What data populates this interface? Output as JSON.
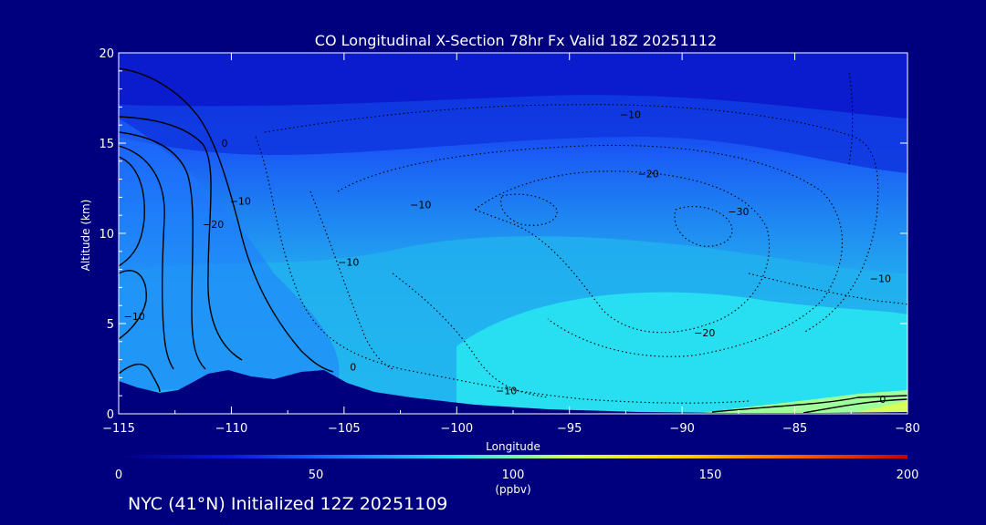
{
  "chart_data": {
    "type": "heatmap",
    "title": "CO Longitudinal X-Section 78hr  Fx Valid 18Z 20251112",
    "xlabel": "Longitude",
    "ylabel": "Altitude (km)",
    "xlim": [
      -115,
      -80
    ],
    "ylim": [
      0,
      20
    ],
    "x_ticks": [
      "−115",
      "−110",
      "−105",
      "−100",
      "−95",
      "−90",
      "−85",
      "−80"
    ],
    "y_ticks": [
      "0",
      "5",
      "10",
      "15",
      "20"
    ],
    "colorbar": {
      "min": 0,
      "max": 200,
      "ticks": [
        "0",
        "50",
        "100",
        "150",
        "200"
      ],
      "label": "(ppbv)",
      "colors": [
        "#00007e",
        "#0a18d6",
        "#1f78ff",
        "#22e6ff",
        "#cfff59",
        "#ffd400",
        "#ff5f00",
        "#c80000"
      ]
    },
    "contour_labels": [
      {
        "text": "0",
        "lon": -110.3,
        "alt": 15.0
      },
      {
        "text": "10",
        "lon": -109.6,
        "alt": 11.8
      },
      {
        "text": "20",
        "lon": -110.8,
        "alt": 10.5
      },
      {
        "text": "10",
        "lon": -114.3,
        "alt": 5.4
      },
      {
        "text": "10",
        "lon": -104.8,
        "alt": 8.4
      },
      {
        "text": "0",
        "lon": -104.6,
        "alt": 2.6
      },
      {
        "text": "10",
        "lon": -101.6,
        "alt": 11.6
      },
      {
        "text": "10",
        "lon": -92.3,
        "alt": 16.6
      },
      {
        "text": "20",
        "lon": -91.5,
        "alt": 13.3
      },
      {
        "text": "30",
        "lon": -87.5,
        "alt": 11.2
      },
      {
        "text": "10",
        "lon": -81.2,
        "alt": 7.5
      },
      {
        "text": "20",
        "lon": -89.0,
        "alt": 4.5
      },
      {
        "text": "10",
        "lon": -97.8,
        "alt": 1.3
      },
      {
        "text": "0",
        "lon": -81.1,
        "alt": 0.8
      }
    ],
    "contour_sign": "−"
  },
  "footer": "NYC (41°N) Initialized 12Z 20251109"
}
